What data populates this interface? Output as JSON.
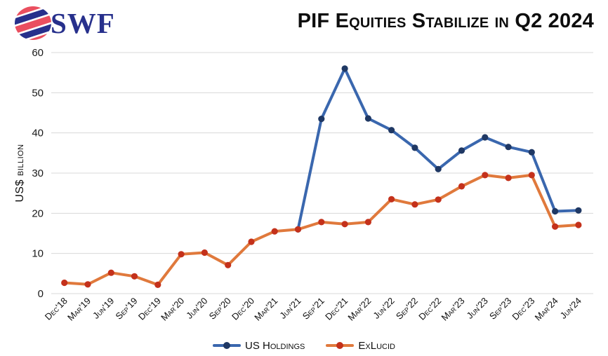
{
  "header": {
    "logo_text": "SWF"
  },
  "chart_data": {
    "type": "line",
    "title": "PIF Equities Stabilize in Q2 2024",
    "xlabel": "",
    "ylabel": "US$ billion",
    "ylim": [
      0,
      60
    ],
    "yticks": [
      0,
      10,
      20,
      30,
      40,
      50,
      60
    ],
    "grid": true,
    "legend_position": "bottom",
    "categories": [
      "Dec'18",
      "Mar'19",
      "Jun'19",
      "Sep'19",
      "Dec'19",
      "Mar'20",
      "Jun'20",
      "Sep'20",
      "Dec'20",
      "Mar'21",
      "Jun'21",
      "Sep'21",
      "Dec'21",
      "Mar'22",
      "Jun'22",
      "Sep'22",
      "Dec'22",
      "Mar'23",
      "Jun'23",
      "Sep'23",
      "Dec'23",
      "Mar'24",
      "Jun'24"
    ],
    "series": [
      {
        "name": "US Holdings",
        "line_color": "#3a67ae",
        "marker_color": "#1f3864",
        "values": [
          null,
          null,
          null,
          null,
          null,
          null,
          null,
          null,
          null,
          null,
          16,
          43.5,
          56,
          43.6,
          40.7,
          36.3,
          31,
          35.6,
          38.9,
          36.5,
          35.2,
          20.5,
          20.7
        ]
      },
      {
        "name": "ExLucid",
        "line_color": "#e0793c",
        "marker_color": "#c4311b",
        "values": [
          2.7,
          2.3,
          5.2,
          4.3,
          2.2,
          9.8,
          10.2,
          7.1,
          12.9,
          15.5,
          16,
          17.8,
          17.3,
          17.8,
          23.5,
          22.2,
          23.4,
          26.7,
          29.5,
          28.8,
          29.5,
          16.7,
          17.1
        ]
      }
    ]
  },
  "colors": {
    "gridline": "#d8d8d8",
    "logo_red": "#ea4f5f",
    "logo_navy": "#27308c"
  }
}
